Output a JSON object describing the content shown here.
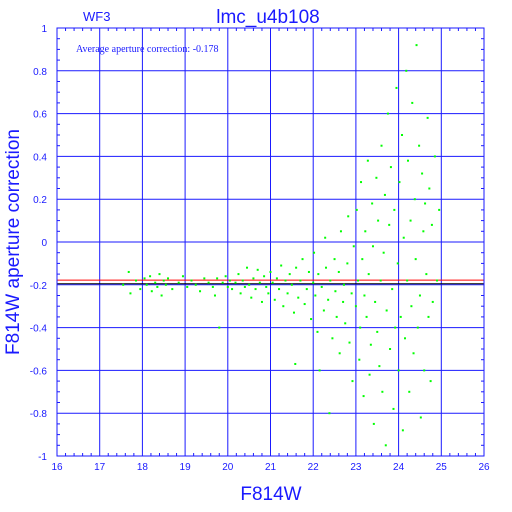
{
  "chart_data": {
    "type": "scatter",
    "title": "lmc_u4b108",
    "corner_label": "WF3",
    "annotation": "Average aperture correction:  -0.178",
    "xlabel": "F814W",
    "ylabel": "F814W aperture correction",
    "xlim": [
      16,
      26
    ],
    "ylim": [
      -1,
      1
    ],
    "x_ticks": [
      "16",
      "17",
      "18",
      "19",
      "20",
      "21",
      "22",
      "23",
      "24",
      "25",
      "26"
    ],
    "y_ticks": [
      "-1",
      "-0.8",
      "-0.6",
      "-0.4",
      "-0.2",
      "0",
      "0.2",
      "0.4",
      "0.6",
      "0.8",
      "1"
    ],
    "grid": true,
    "reference_lines": [
      {
        "name": "average",
        "y": -0.178,
        "color": "#ff0000"
      },
      {
        "name": "bound",
        "y": -0.195,
        "color": "#000000"
      }
    ],
    "point_color": "#00ff00",
    "line_color": "#1a1aff",
    "points": [
      [
        17.55,
        -0.2
      ],
      [
        17.68,
        -0.14
      ],
      [
        17.72,
        -0.24
      ],
      [
        17.85,
        -0.18
      ],
      [
        17.95,
        -0.22
      ],
      [
        18.05,
        -0.17
      ],
      [
        18.1,
        -0.2
      ],
      [
        18.18,
        -0.16
      ],
      [
        18.22,
        -0.23
      ],
      [
        18.3,
        -0.19
      ],
      [
        18.35,
        -0.21
      ],
      [
        18.4,
        -0.15
      ],
      [
        18.45,
        -0.25
      ],
      [
        18.5,
        -0.18
      ],
      [
        18.55,
        -0.2
      ],
      [
        18.6,
        -0.17
      ],
      [
        18.7,
        -0.22
      ],
      [
        18.85,
        -0.19
      ],
      [
        18.95,
        -0.16
      ],
      [
        19.05,
        -0.21
      ],
      [
        19.15,
        -0.18
      ],
      [
        19.25,
        -0.2
      ],
      [
        19.35,
        -0.23
      ],
      [
        19.45,
        -0.17
      ],
      [
        19.55,
        -0.19
      ],
      [
        19.65,
        -0.21
      ],
      [
        19.7,
        -0.25
      ],
      [
        19.75,
        -0.17
      ],
      [
        19.8,
        -0.4
      ],
      [
        19.88,
        -0.19
      ],
      [
        19.95,
        -0.16
      ],
      [
        20.0,
        -0.21
      ],
      [
        20.05,
        -0.18
      ],
      [
        20.1,
        -0.22
      ],
      [
        20.18,
        -0.19
      ],
      [
        20.25,
        -0.15
      ],
      [
        20.3,
        -0.24
      ],
      [
        20.35,
        -0.18
      ],
      [
        20.4,
        -0.21
      ],
      [
        20.45,
        -0.12
      ],
      [
        20.5,
        -0.2
      ],
      [
        20.55,
        -0.26
      ],
      [
        20.6,
        -0.17
      ],
      [
        20.65,
        -0.22
      ],
      [
        20.7,
        -0.13
      ],
      [
        20.75,
        -0.19
      ],
      [
        20.8,
        -0.28
      ],
      [
        20.85,
        -0.16
      ],
      [
        20.9,
        -0.21
      ],
      [
        20.95,
        -0.24
      ],
      [
        21.0,
        -0.14
      ],
      [
        21.05,
        -0.19
      ],
      [
        21.1,
        -0.27
      ],
      [
        21.15,
        -0.17
      ],
      [
        21.2,
        -0.22
      ],
      [
        21.25,
        -0.11
      ],
      [
        21.3,
        -0.3
      ],
      [
        21.35,
        -0.18
      ],
      [
        21.4,
        -0.24
      ],
      [
        21.45,
        -0.15
      ],
      [
        21.5,
        -0.2
      ],
      [
        21.55,
        -0.33
      ],
      [
        21.58,
        -0.57
      ],
      [
        21.6,
        -0.12
      ],
      [
        21.65,
        -0.26
      ],
      [
        21.7,
        -0.18
      ],
      [
        21.75,
        -0.08
      ],
      [
        21.8,
        -0.29
      ],
      [
        21.85,
        -0.22
      ],
      [
        21.9,
        -0.14
      ],
      [
        21.95,
        -0.36
      ],
      [
        22.0,
        -0.19
      ],
      [
        22.02,
        -0.05
      ],
      [
        22.05,
        -0.25
      ],
      [
        22.1,
        -0.42
      ],
      [
        22.12,
        -0.15
      ],
      [
        22.15,
        -0.6
      ],
      [
        22.2,
        -0.21
      ],
      [
        22.25,
        -0.32
      ],
      [
        22.28,
        0.02
      ],
      [
        22.3,
        -0.12
      ],
      [
        22.35,
        -0.27
      ],
      [
        22.38,
        -0.8
      ],
      [
        22.4,
        -0.18
      ],
      [
        22.45,
        -0.45
      ],
      [
        22.5,
        -0.08
      ],
      [
        22.52,
        -0.23
      ],
      [
        22.55,
        -0.35
      ],
      [
        22.6,
        -0.14
      ],
      [
        22.62,
        -0.52
      ],
      [
        22.65,
        0.05
      ],
      [
        22.7,
        -0.28
      ],
      [
        22.72,
        -0.2
      ],
      [
        22.75,
        -0.38
      ],
      [
        22.8,
        -0.1
      ],
      [
        22.82,
        0.12
      ],
      [
        22.85,
        -0.47
      ],
      [
        22.9,
        -0.24
      ],
      [
        22.92,
        -0.65
      ],
      [
        22.95,
        -0.02
      ],
      [
        23.0,
        -0.3
      ],
      [
        23.02,
        0.15
      ],
      [
        23.05,
        -0.18
      ],
      [
        23.08,
        -0.55
      ],
      [
        23.1,
        -0.4
      ],
      [
        23.12,
        0.28
      ],
      [
        23.15,
        -0.08
      ],
      [
        23.18,
        -0.72
      ],
      [
        23.2,
        -0.25
      ],
      [
        23.22,
        0.05
      ],
      [
        23.25,
        -0.35
      ],
      [
        23.28,
        0.38
      ],
      [
        23.3,
        -0.15
      ],
      [
        23.32,
        -0.62
      ],
      [
        23.35,
        -0.48
      ],
      [
        23.38,
        0.18
      ],
      [
        23.4,
        -0.02
      ],
      [
        23.42,
        -0.85
      ],
      [
        23.45,
        -0.28
      ],
      [
        23.48,
        0.3
      ],
      [
        23.5,
        -0.42
      ],
      [
        23.52,
        0.1
      ],
      [
        23.55,
        -0.58
      ],
      [
        23.58,
        -0.18
      ],
      [
        23.6,
        0.45
      ],
      [
        23.62,
        -0.7
      ],
      [
        23.65,
        -0.05
      ],
      [
        23.68,
        0.22
      ],
      [
        23.7,
        -0.95
      ],
      [
        23.72,
        -0.32
      ],
      [
        23.75,
        0.6
      ],
      [
        23.78,
        0.08
      ],
      [
        23.8,
        -0.5
      ],
      [
        23.82,
        0.35
      ],
      [
        23.85,
        -0.22
      ],
      [
        23.88,
        -0.78
      ],
      [
        23.9,
        0.15
      ],
      [
        23.92,
        -0.4
      ],
      [
        23.95,
        0.72
      ],
      [
        23.98,
        -0.1
      ],
      [
        24.0,
        -0.6
      ],
      [
        24.02,
        0.28
      ],
      [
        24.05,
        -0.35
      ],
      [
        24.08,
        0.5
      ],
      [
        24.1,
        -0.88
      ],
      [
        24.12,
        0.02
      ],
      [
        24.15,
        -0.45
      ],
      [
        24.18,
        0.8
      ],
      [
        24.2,
        -0.18
      ],
      [
        24.22,
        0.38
      ],
      [
        24.25,
        -0.7
      ],
      [
        24.28,
        0.1
      ],
      [
        24.3,
        -0.3
      ],
      [
        24.32,
        0.65
      ],
      [
        24.35,
        -0.52
      ],
      [
        24.38,
        0.2
      ],
      [
        24.4,
        -0.08
      ],
      [
        24.42,
        0.92
      ],
      [
        24.45,
        -0.4
      ],
      [
        24.48,
        0.45
      ],
      [
        24.5,
        -0.25
      ],
      [
        24.52,
        -0.82
      ],
      [
        24.55,
        0.32
      ],
      [
        24.58,
        0.05
      ],
      [
        24.6,
        -0.6
      ],
      [
        24.62,
        0.18
      ],
      [
        24.65,
        -0.15
      ],
      [
        24.68,
        0.58
      ],
      [
        24.7,
        -0.35
      ],
      [
        24.72,
        0.25
      ],
      [
        24.75,
        -0.65
      ],
      [
        24.78,
        0.08
      ],
      [
        24.8,
        -0.28
      ],
      [
        24.85,
        0.4
      ],
      [
        24.9,
        -0.18
      ],
      [
        24.95,
        0.15
      ]
    ]
  }
}
